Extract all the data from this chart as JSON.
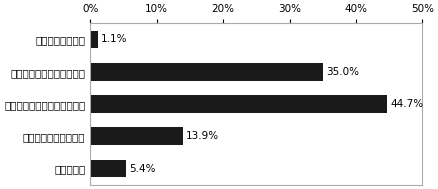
{
  "categories": [
    "分からない",
    "うまくいかないと思う",
    "あまりうまくいかないと思う",
    "ある程度うまくいくと思う",
    "うまくいくと思う"
  ],
  "values": [
    5.4,
    13.9,
    44.7,
    35.0,
    1.1
  ],
  "labels": [
    "5.4%",
    "13.9%",
    "44.7%",
    "35.0%",
    "1.1%"
  ],
  "bar_color": "#1a1a1a",
  "xlim": [
    0,
    50
  ],
  "xticks": [
    0,
    10,
    20,
    30,
    40,
    50
  ],
  "xtick_labels": [
    "0%",
    "10%",
    "20%",
    "30%",
    "40%",
    "50%"
  ],
  "figsize": [
    4.38,
    1.89
  ],
  "dpi": 100,
  "bar_height": 0.55,
  "label_fontsize": 7.5,
  "tick_fontsize": 7.5,
  "background_color": "#ffffff",
  "spine_color": "#aaaaaa"
}
